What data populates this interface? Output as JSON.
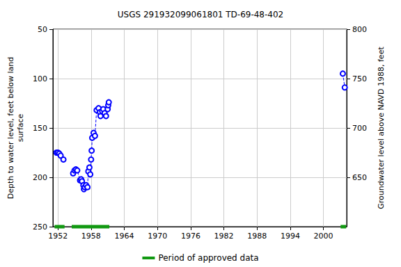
{
  "chart_data": {
    "type": "line",
    "title": "USGS 291932099061801 TD-69-48-402",
    "y_label": "Depth to water level, feet below land\nsurface",
    "y2_label": "Groundwater level above NAVD 1988, feet",
    "xlim": [
      1951.1,
      2004.2
    ],
    "xticks": [
      1952,
      1958,
      1964,
      1970,
      1976,
      1982,
      1988,
      1994,
      2000
    ],
    "ylim": [
      50,
      250
    ],
    "yticks": [
      50,
      100,
      150,
      200,
      250
    ],
    "y2lim": [
      600,
      800
    ],
    "y2ticks": [
      650,
      700,
      750,
      800
    ],
    "grid": true,
    "series": [
      {
        "name": "Depth to water level",
        "color": "#0000ff",
        "marker": "open_circle",
        "line_style": "dashed",
        "x": [
          1951.75,
          1952.0,
          1952.25,
          1952.5,
          1953.0,
          null,
          1954.75,
          1955.0,
          1955.25,
          1955.5,
          1956.0,
          1956.2,
          1956.35,
          1956.6,
          1956.7,
          1956.85,
          1957.1,
          1957.35,
          1957.5,
          1957.7,
          1957.85,
          1958.0,
          1958.1,
          1958.2,
          1958.45,
          1958.7,
          1959.0,
          1959.35,
          1959.6,
          1959.7,
          1960.0,
          1960.2,
          1960.45,
          1960.7,
          1961.0,
          1961.1,
          1961.2,
          null,
          2003.5,
          2003.85
        ],
        "values": [
          175,
          175,
          176,
          178,
          182,
          null,
          196,
          193,
          192,
          193,
          203,
          202,
          204,
          208,
          212,
          210,
          208,
          210,
          194,
          190,
          197,
          182,
          173,
          160,
          155,
          158,
          132,
          130,
          134,
          138,
          133,
          131,
          135,
          138,
          131,
          127,
          124,
          null,
          95,
          109
        ]
      }
    ],
    "approved_periods": {
      "name": "Period of approved data",
      "color": "#119911",
      "ranges": [
        [
          1951.4,
          1953.2
        ],
        [
          1954.5,
          1961.3
        ],
        [
          2003.1,
          2004.1
        ]
      ]
    },
    "legend": "bottom"
  }
}
